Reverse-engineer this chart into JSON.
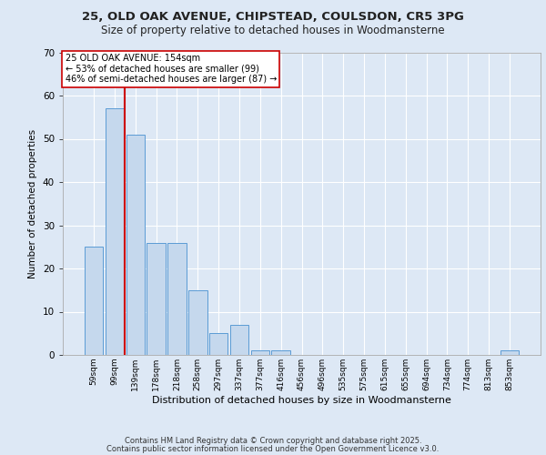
{
  "title1": "25, OLD OAK AVENUE, CHIPSTEAD, COULSDON, CR5 3PG",
  "title2": "Size of property relative to detached houses in Woodmansterne",
  "xlabel": "Distribution of detached houses by size in Woodmansterne",
  "ylabel": "Number of detached properties",
  "categories": [
    "59sqm",
    "99sqm",
    "139sqm",
    "178sqm",
    "218sqm",
    "258sqm",
    "297sqm",
    "337sqm",
    "377sqm",
    "416sqm",
    "456sqm",
    "496sqm",
    "535sqm",
    "575sqm",
    "615sqm",
    "655sqm",
    "694sqm",
    "734sqm",
    "774sqm",
    "813sqm",
    "853sqm"
  ],
  "values": [
    25,
    57,
    51,
    26,
    26,
    15,
    5,
    7,
    1,
    1,
    0,
    0,
    0,
    0,
    0,
    0,
    0,
    0,
    0,
    0,
    1
  ],
  "bar_color": "#c5d8ed",
  "bar_edge_color": "#5b9bd5",
  "red_line_x": 1.5,
  "red_line_color": "#cc0000",
  "annotation_text": "25 OLD OAK AVENUE: 154sqm\n← 53% of detached houses are smaller (99)\n46% of semi-detached houses are larger (87) →",
  "annotation_box_color": "#ffffff",
  "annotation_box_edge": "#cc0000",
  "ylim": [
    0,
    70
  ],
  "yticks": [
    0,
    10,
    20,
    30,
    40,
    50,
    60,
    70
  ],
  "background_color": "#dde8f5",
  "grid_color": "#ffffff",
  "fig_facecolor": "#dde8f5",
  "footer1": "Contains HM Land Registry data © Crown copyright and database right 2025.",
  "footer2": "Contains public sector information licensed under the Open Government Licence v3.0."
}
